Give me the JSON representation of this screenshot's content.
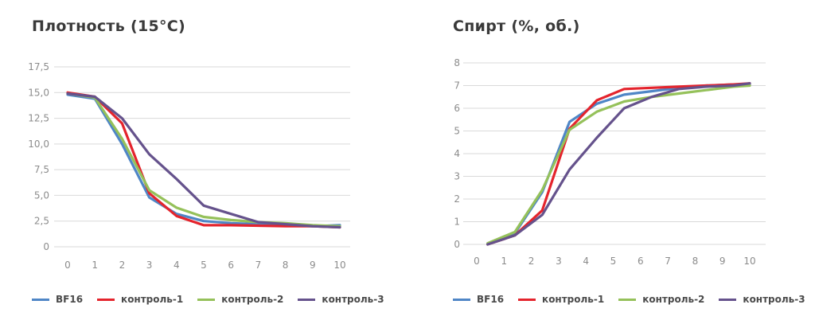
{
  "chart_data": [
    {
      "type": "line",
      "title": "Плотность (15°C)",
      "x": [
        0,
        1,
        2,
        3,
        4,
        5,
        6,
        7,
        8,
        9,
        10
      ],
      "x_tick_labels": [
        "0",
        "1",
        "2",
        "3",
        "4",
        "5",
        "6",
        "7",
        "8",
        "9",
        "10"
      ],
      "y_ticks": [
        0,
        2.5,
        5,
        7.5,
        10,
        12.5,
        15,
        17.5
      ],
      "y_tick_labels": [
        "0",
        "2,5",
        "5,0",
        "7,5",
        "10,0",
        "12,5",
        "15,0",
        "17,5"
      ],
      "ylim": [
        0,
        17.5
      ],
      "grid": true,
      "legend_position": "bottom",
      "series": [
        {
          "name": "BF16",
          "color": "#4f86c6",
          "x": [
            0,
            1,
            2,
            3,
            4,
            5,
            6,
            7,
            8,
            9,
            10
          ],
          "values": [
            14.8,
            14.4,
            10.0,
            4.8,
            3.2,
            2.5,
            2.3,
            2.2,
            2.1,
            2.0,
            2.1
          ]
        },
        {
          "name": "контроль-1",
          "color": "#e4242d",
          "x": [
            0,
            1,
            2,
            3,
            4,
            5,
            6,
            7,
            8,
            9,
            10
          ],
          "values": [
            15.0,
            14.6,
            12.0,
            5.2,
            3.0,
            2.1,
            2.1,
            2.05,
            2.0,
            2.0,
            1.9
          ]
        },
        {
          "name": "контроль-2",
          "color": "#95c15a",
          "x": [
            0,
            1,
            2,
            3,
            4,
            5,
            6,
            7,
            8,
            9,
            10
          ],
          "values": [
            14.9,
            14.5,
            10.5,
            5.5,
            3.8,
            2.9,
            2.6,
            2.4,
            2.3,
            2.1,
            2.0
          ]
        },
        {
          "name": "контроль-3",
          "color": "#65528c",
          "x": [
            0,
            1,
            2,
            3,
            4,
            5,
            6,
            7,
            8,
            9,
            10
          ],
          "values": [
            14.9,
            14.6,
            12.5,
            9.0,
            6.6,
            4.0,
            3.2,
            2.4,
            2.2,
            2.0,
            1.9
          ]
        }
      ]
    },
    {
      "type": "line",
      "title": "Спирт (%, об.)",
      "x": [
        0,
        1,
        2,
        3,
        4,
        5,
        6,
        7,
        8,
        9,
        10
      ],
      "x_tick_labels": [
        "0",
        "1",
        "2",
        "3",
        "4",
        "5",
        "6",
        "7",
        "8",
        "9",
        "10"
      ],
      "y_ticks": [
        0,
        1,
        2,
        3,
        4,
        5,
        6,
        7,
        8
      ],
      "y_tick_labels": [
        "0",
        "1",
        "2",
        "3",
        "4",
        "5",
        "6",
        "7",
        "8"
      ],
      "ylim": [
        0,
        8
      ],
      "grid": true,
      "legend_position": "bottom",
      "series": [
        {
          "name": "BF16",
          "color": "#4f86c6",
          "x": [
            0.4,
            1.4,
            2.4,
            3.4,
            4.4,
            5.4,
            6.4,
            7.4,
            8.4,
            9.4,
            10
          ],
          "values": [
            0.0,
            0.5,
            2.3,
            5.4,
            6.2,
            6.6,
            6.75,
            6.9,
            7.0,
            7.05,
            7.05
          ]
        },
        {
          "name": "контроль-1",
          "color": "#e4242d",
          "x": [
            0.4,
            1.4,
            2.4,
            3.4,
            4.4,
            5.4,
            6.4,
            7.4,
            8.4,
            9.4,
            10
          ],
          "values": [
            0.0,
            0.4,
            1.5,
            5.1,
            6.35,
            6.85,
            6.9,
            6.95,
            7.0,
            7.05,
            7.1
          ]
        },
        {
          "name": "контроль-2",
          "color": "#95c15a",
          "x": [
            0.4,
            1.4,
            2.4,
            3.4,
            4.4,
            5.4,
            6.4,
            7.4,
            8.4,
            9.4,
            10
          ],
          "values": [
            0.05,
            0.55,
            2.4,
            5.05,
            5.85,
            6.3,
            6.5,
            6.65,
            6.8,
            6.95,
            7.0
          ]
        },
        {
          "name": "контроль-3",
          "color": "#65528c",
          "x": [
            0.4,
            1.4,
            2.4,
            3.4,
            4.4,
            5.4,
            6.4,
            7.4,
            8.4,
            9.4,
            10
          ],
          "values": [
            0.0,
            0.4,
            1.3,
            3.3,
            4.7,
            6.0,
            6.5,
            6.85,
            6.95,
            7.0,
            7.1
          ]
        }
      ]
    }
  ]
}
